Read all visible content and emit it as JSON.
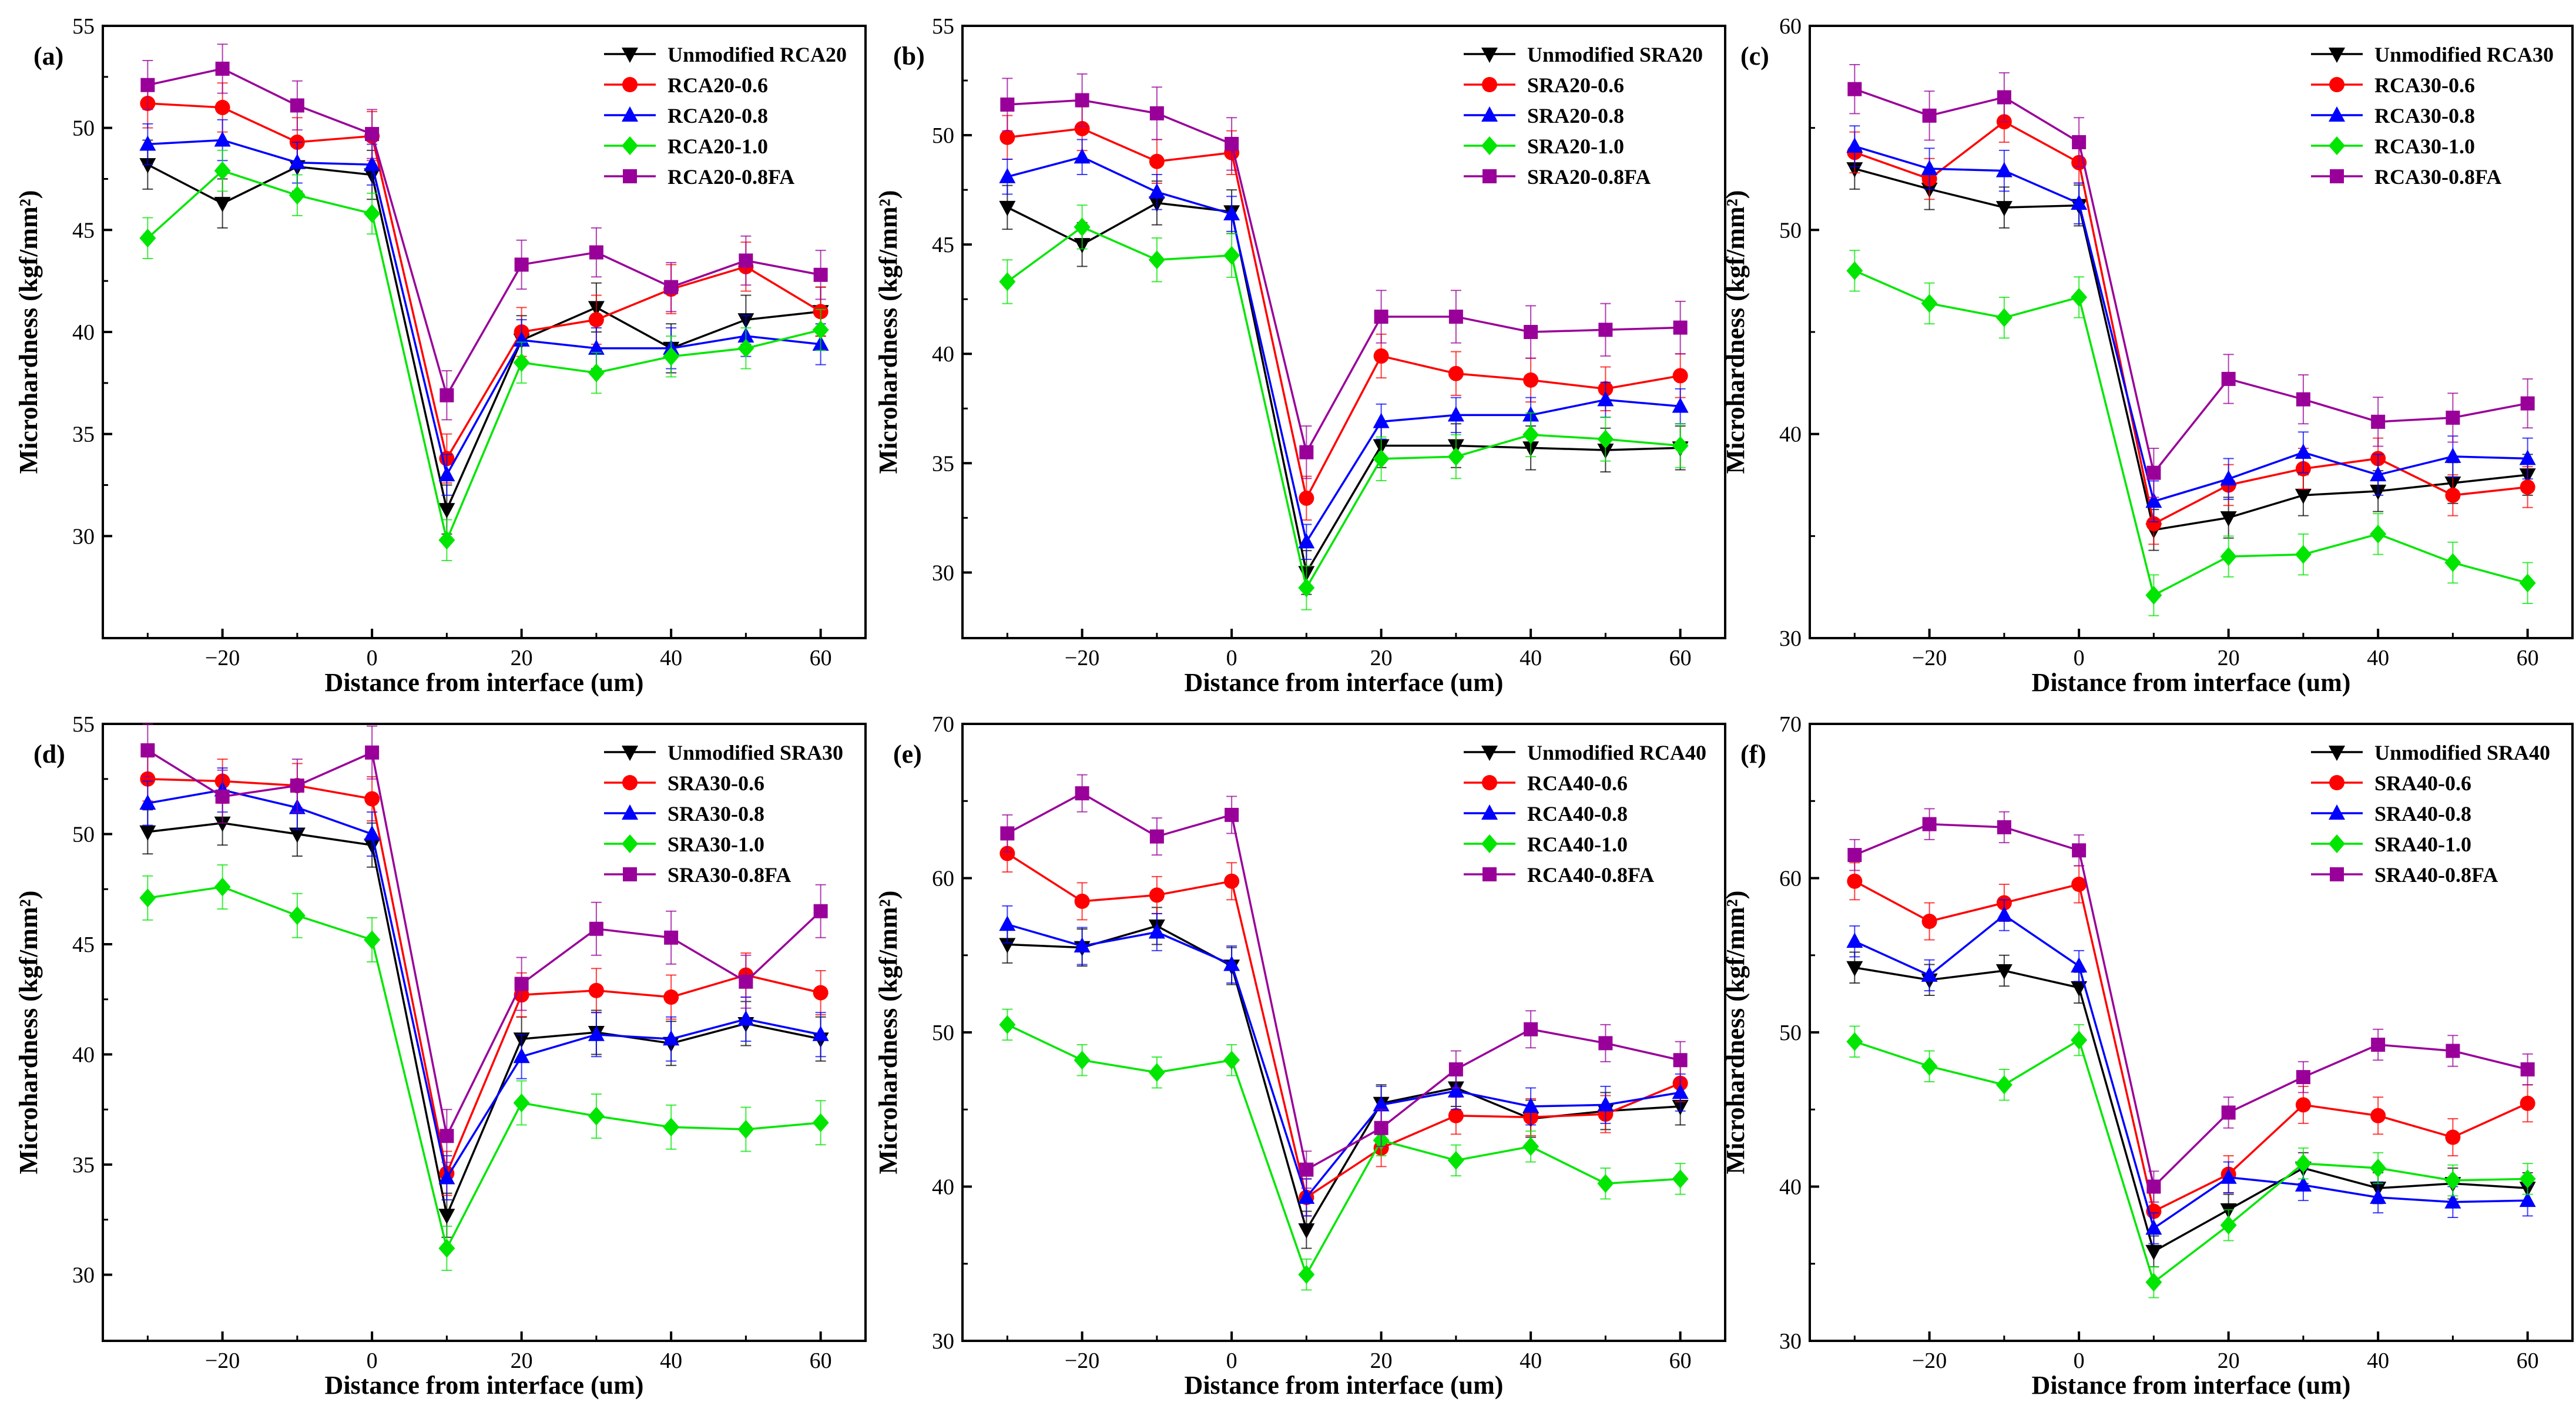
{
  "figure": {
    "panel_order": [
      "a",
      "b",
      "c",
      "d",
      "e",
      "f"
    ]
  },
  "chart_data": [
    {
      "panel": "(a)",
      "type": "line",
      "xlabel": "Distance from interface (um)",
      "ylabel": "Microhardness (kgf/mm²)",
      "xlim": [
        -36,
        66
      ],
      "ylim": [
        25,
        55
      ],
      "xticks": [
        -20,
        0,
        20,
        40,
        60
      ],
      "xtick_labels": [
        "−20",
        "0",
        "20",
        "40",
        "60"
      ],
      "yticks": [
        30,
        35,
        40,
        45,
        50,
        55
      ],
      "legend_position": "top-right",
      "x": [
        -30,
        -20,
        -10,
        0,
        10,
        20,
        30,
        40,
        50,
        60
      ],
      "series": [
        {
          "name": "Unmodified RCA20",
          "color": "#000000",
          "marker": "triangle-down",
          "values": [
            48.2,
            46.3,
            48.1,
            47.7,
            31.3,
            39.6,
            41.2,
            39.2,
            40.6,
            41.0
          ],
          "error": 1.2
        },
        {
          "name": "RCA20-0.6",
          "color": "#ff0000",
          "marker": "circle",
          "values": [
            51.2,
            51.0,
            49.3,
            49.6,
            33.8,
            40.0,
            40.6,
            42.1,
            43.2,
            41.0
          ],
          "error": 1.2
        },
        {
          "name": "RCA20-0.8",
          "color": "#0000ff",
          "marker": "triangle-up",
          "values": [
            49.2,
            49.4,
            48.3,
            48.2,
            33.0,
            39.6,
            39.2,
            39.2,
            39.8,
            39.4
          ],
          "error": 1.0
        },
        {
          "name": "RCA20-1.0",
          "color": "#00e600",
          "marker": "diamond",
          "values": [
            44.6,
            47.9,
            46.7,
            45.8,
            29.8,
            38.5,
            38.0,
            38.8,
            39.2,
            40.1
          ],
          "error": 1.0
        },
        {
          "name": "RCA20-0.8FA",
          "color": "#990099",
          "marker": "square",
          "values": [
            52.1,
            52.9,
            51.1,
            49.7,
            36.9,
            43.3,
            43.9,
            42.2,
            43.5,
            42.8
          ],
          "error": 1.2
        }
      ]
    },
    {
      "panel": "(b)",
      "type": "line",
      "xlabel": "Distance from interface (um)",
      "ylabel": "Microhardness (kgf/mm²)",
      "xlim": [
        -36,
        66
      ],
      "ylim": [
        27,
        55
      ],
      "xticks": [
        -20,
        0,
        20,
        40,
        60
      ],
      "xtick_labels": [
        "−20",
        "0",
        "20",
        "40",
        "60"
      ],
      "yticks": [
        30,
        35,
        40,
        45,
        50,
        55
      ],
      "legend_position": "top-right",
      "x": [
        -30,
        -20,
        -10,
        0,
        10,
        20,
        30,
        40,
        50,
        60
      ],
      "series": [
        {
          "name": "Unmodified SRA20",
          "color": "#000000",
          "marker": "triangle-down",
          "values": [
            46.7,
            45.0,
            46.9,
            46.5,
            30.0,
            35.8,
            35.8,
            35.7,
            35.6,
            35.7
          ],
          "error": 1.0
        },
        {
          "name": "SRA20-0.6",
          "color": "#ff0000",
          "marker": "circle",
          "values": [
            49.9,
            50.3,
            48.8,
            49.2,
            33.4,
            39.9,
            39.1,
            38.8,
            38.4,
            39.0
          ],
          "error": 1.0
        },
        {
          "name": "SRA20-0.8",
          "color": "#0000ff",
          "marker": "triangle-up",
          "values": [
            48.1,
            49.0,
            47.4,
            46.4,
            31.4,
            36.9,
            37.2,
            37.2,
            37.9,
            37.6
          ],
          "error": 0.8
        },
        {
          "name": "SRA20-1.0",
          "color": "#00e600",
          "marker": "diamond",
          "values": [
            43.3,
            45.8,
            44.3,
            44.5,
            29.3,
            35.2,
            35.3,
            36.3,
            36.1,
            35.8
          ],
          "error": 1.0
        },
        {
          "name": "SRA20-0.8FA",
          "color": "#990099",
          "marker": "square",
          "values": [
            51.4,
            51.6,
            51.0,
            49.6,
            35.5,
            41.7,
            41.7,
            41.0,
            41.1,
            41.2
          ],
          "error": 1.2
        }
      ]
    },
    {
      "panel": "(c)",
      "type": "line",
      "xlabel": "Distance from interface (um)",
      "ylabel": "Microhardness (kgf/mm²)",
      "xlim": [
        -36,
        66
      ],
      "ylim": [
        30,
        60
      ],
      "xticks": [
        -20,
        0,
        20,
        40,
        60
      ],
      "xtick_labels": [
        "−20",
        "0",
        "20",
        "40",
        "60"
      ],
      "yticks": [
        30,
        40,
        50,
        60
      ],
      "legend_position": "top-right",
      "x": [
        -30,
        -20,
        -10,
        0,
        10,
        20,
        30,
        40,
        50,
        60
      ],
      "series": [
        {
          "name": "Unmodified RCA30",
          "color": "#000000",
          "marker": "triangle-down",
          "values": [
            53.0,
            52.0,
            51.1,
            51.2,
            35.3,
            35.9,
            37.0,
            37.2,
            37.6,
            38.0
          ],
          "error": 1.0
        },
        {
          "name": "RCA30-0.6",
          "color": "#ff0000",
          "marker": "circle",
          "values": [
            53.8,
            52.5,
            55.3,
            53.3,
            35.6,
            37.5,
            38.3,
            38.8,
            37.0,
            37.4
          ],
          "error": 1.0
        },
        {
          "name": "RCA30-0.8",
          "color": "#0000ff",
          "marker": "triangle-up",
          "values": [
            54.1,
            53.0,
            52.9,
            51.3,
            36.7,
            37.8,
            39.1,
            38.0,
            38.9,
            38.8
          ],
          "error": 1.0
        },
        {
          "name": "RCA30-1.0",
          "color": "#00e600",
          "marker": "diamond",
          "values": [
            48.0,
            46.4,
            45.7,
            46.7,
            32.1,
            34.0,
            34.1,
            35.1,
            33.7,
            32.7
          ],
          "error": 1.0
        },
        {
          "name": "RCA30-0.8FA",
          "color": "#990099",
          "marker": "square",
          "values": [
            56.9,
            55.6,
            56.5,
            54.3,
            38.1,
            42.7,
            41.7,
            40.6,
            40.8,
            41.5
          ],
          "error": 1.2
        }
      ]
    },
    {
      "panel": "(d)",
      "type": "line",
      "xlabel": "Distance from interface (um)",
      "ylabel": "Microhardness (kgf/mm²)",
      "xlim": [
        -36,
        66
      ],
      "ylim": [
        27,
        55
      ],
      "xticks": [
        -20,
        0,
        20,
        40,
        60
      ],
      "xtick_labels": [
        "−20",
        "0",
        "20",
        "40",
        "60"
      ],
      "yticks": [
        30,
        35,
        40,
        45,
        50,
        55
      ],
      "legend_position": "top-right",
      "x": [
        -30,
        -20,
        -10,
        0,
        10,
        20,
        30,
        40,
        50,
        60
      ],
      "series": [
        {
          "name": "Unmodified SRA30",
          "color": "#000000",
          "marker": "triangle-down",
          "values": [
            50.1,
            50.5,
            50.0,
            49.5,
            32.7,
            40.7,
            41.0,
            40.5,
            41.4,
            40.7
          ],
          "error": 1.0
        },
        {
          "name": "SRA30-0.6",
          "color": "#ff0000",
          "marker": "circle",
          "values": [
            52.5,
            52.4,
            52.2,
            51.6,
            34.6,
            42.7,
            42.9,
            42.6,
            43.6,
            42.8
          ],
          "error": 1.0
        },
        {
          "name": "SRA30-0.8",
          "color": "#0000ff",
          "marker": "triangle-up",
          "values": [
            51.4,
            52.0,
            51.2,
            50.0,
            34.4,
            39.9,
            40.9,
            40.7,
            41.6,
            40.9
          ],
          "error": 1.0
        },
        {
          "name": "SRA30-1.0",
          "color": "#00e600",
          "marker": "diamond",
          "values": [
            47.1,
            47.6,
            46.3,
            45.2,
            31.2,
            37.8,
            37.2,
            36.7,
            36.6,
            36.9
          ],
          "error": 1.0
        },
        {
          "name": "SRA30-0.8FA",
          "color": "#990099",
          "marker": "square",
          "values": [
            53.8,
            51.7,
            52.2,
            53.7,
            36.3,
            43.2,
            45.7,
            45.3,
            43.3,
            46.5
          ],
          "error": 1.2
        }
      ]
    },
    {
      "panel": "(e)",
      "type": "line",
      "xlabel": "Distance from interface (um)",
      "ylabel": "Microhardness (kgf/mm²)",
      "xlim": [
        -36,
        66
      ],
      "ylim": [
        30,
        70
      ],
      "xticks": [
        -20,
        0,
        20,
        40,
        60
      ],
      "xtick_labels": [
        "−20",
        "0",
        "20",
        "40",
        "60"
      ],
      "yticks": [
        30,
        40,
        50,
        60,
        70
      ],
      "legend_position": "top-right",
      "x": [
        -30,
        -20,
        -10,
        0,
        10,
        20,
        30,
        40,
        50,
        60
      ],
      "series": [
        {
          "name": "Unmodified RCA40",
          "color": "#000000",
          "marker": "triangle-down",
          "values": [
            55.7,
            55.5,
            56.9,
            54.3,
            37.2,
            45.4,
            46.4,
            44.4,
            44.9,
            45.2
          ],
          "error": 1.2
        },
        {
          "name": "RCA40-0.6",
          "color": "#ff0000",
          "marker": "circle",
          "values": [
            61.6,
            58.5,
            58.9,
            59.8,
            39.3,
            42.5,
            44.6,
            44.5,
            44.7,
            46.7
          ],
          "error": 1.2
        },
        {
          "name": "RCA40-0.8",
          "color": "#0000ff",
          "marker": "triangle-up",
          "values": [
            57.0,
            55.6,
            56.5,
            54.4,
            39.3,
            45.3,
            46.2,
            45.2,
            45.3,
            46.1
          ],
          "error": 1.2
        },
        {
          "name": "RCA40-1.0",
          "color": "#00e600",
          "marker": "diamond",
          "values": [
            50.5,
            48.2,
            47.4,
            48.2,
            34.3,
            43.0,
            41.7,
            42.6,
            40.2,
            40.5
          ],
          "error": 1.0
        },
        {
          "name": "RCA40-0.8FA",
          "color": "#990099",
          "marker": "square",
          "values": [
            62.9,
            65.5,
            62.7,
            64.1,
            41.1,
            43.8,
            47.6,
            50.2,
            49.3,
            48.2
          ],
          "error": 1.2
        }
      ]
    },
    {
      "panel": "(f)",
      "type": "line",
      "xlabel": "Distance from interface (um)",
      "ylabel": "Microhardness (kgf/mm²)",
      "xlim": [
        -36,
        66
      ],
      "ylim": [
        30,
        70
      ],
      "xticks": [
        -20,
        0,
        20,
        40,
        60
      ],
      "xtick_labels": [
        "−20",
        "0",
        "20",
        "40",
        "60"
      ],
      "yticks": [
        30,
        40,
        50,
        60,
        70
      ],
      "legend_position": "top-right",
      "x": [
        -30,
        -20,
        -10,
        0,
        10,
        20,
        30,
        40,
        50,
        60
      ],
      "series": [
        {
          "name": "Unmodified SRA40",
          "color": "#000000",
          "marker": "triangle-down",
          "values": [
            54.2,
            53.4,
            54.0,
            52.9,
            35.8,
            38.5,
            41.2,
            39.9,
            40.2,
            39.9
          ],
          "error": 1.0
        },
        {
          "name": "SRA40-0.6",
          "color": "#ff0000",
          "marker": "circle",
          "values": [
            59.8,
            57.2,
            58.4,
            59.6,
            38.4,
            40.8,
            45.3,
            44.6,
            43.2,
            45.4
          ],
          "error": 1.2
        },
        {
          "name": "SRA40-0.8",
          "color": "#0000ff",
          "marker": "triangle-up",
          "values": [
            55.9,
            53.7,
            57.6,
            54.3,
            37.3,
            40.6,
            40.1,
            39.3,
            39.0,
            39.1
          ],
          "error": 1.0
        },
        {
          "name": "SRA40-1.0",
          "color": "#00e600",
          "marker": "diamond",
          "values": [
            49.4,
            47.8,
            46.6,
            49.5,
            33.8,
            37.5,
            41.5,
            41.2,
            40.4,
            40.5
          ],
          "error": 1.0
        },
        {
          "name": "SRA40-0.8FA",
          "color": "#990099",
          "marker": "square",
          "values": [
            61.5,
            63.5,
            63.3,
            61.8,
            40.0,
            44.8,
            47.1,
            49.2,
            48.8,
            47.6
          ],
          "error": 1.0
        }
      ]
    }
  ]
}
